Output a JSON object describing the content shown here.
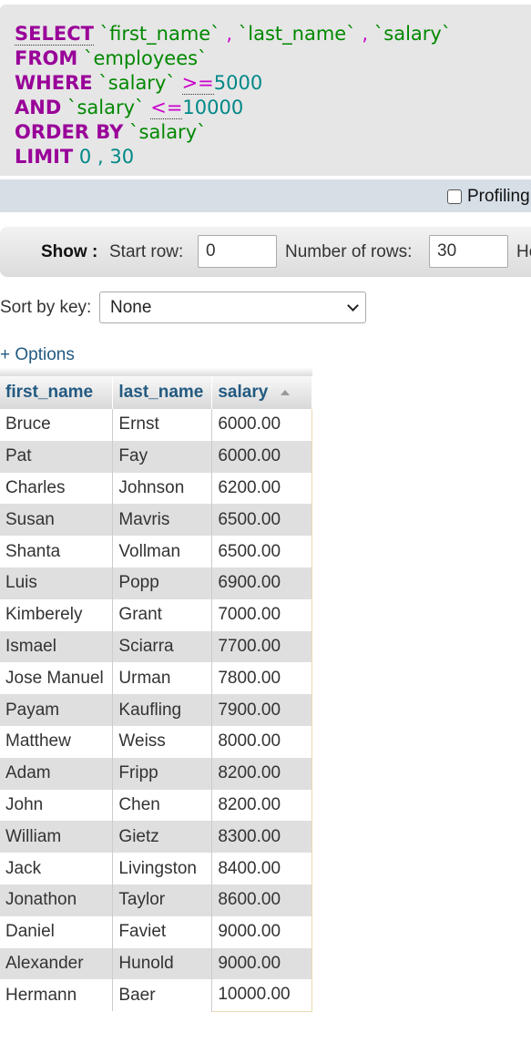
{
  "query": {
    "select": "SELECT",
    "col1": "`first_name`",
    "comma": ",",
    "col2": "`last_name`",
    "col3": "`salary`",
    "from": "FROM",
    "table": "`employees`",
    "where": "WHERE",
    "where_col": "`salary`",
    "op_ge": ">=",
    "val_ge": "5000",
    "and": "AND",
    "and_col": "`salary`",
    "op_le": "<=",
    "val_le": "10000",
    "order_by": "ORDER BY",
    "order_col": "`salary`",
    "limit": "LIMIT",
    "limit_offset": "0",
    "limit_count": "30"
  },
  "profiling": {
    "label": "Profiling"
  },
  "nav": {
    "show_label": "Show :",
    "start_row_label": "Start row:",
    "start_row_value": "0",
    "num_rows_label": "Number of rows:",
    "num_rows_value": "30",
    "headers_label": "Headers every"
  },
  "sort": {
    "label": "Sort by key:",
    "selected": "None"
  },
  "options_link": "+ Options",
  "table": {
    "columns": [
      "first_name",
      "last_name",
      "salary"
    ],
    "rows": [
      [
        "Bruce",
        "Ernst",
        "6000.00"
      ],
      [
        "Pat",
        "Fay",
        "6000.00"
      ],
      [
        "Charles",
        "Johnson",
        "6200.00"
      ],
      [
        "Susan",
        "Mavris",
        "6500.00"
      ],
      [
        "Shanta",
        "Vollman",
        "6500.00"
      ],
      [
        "Luis",
        "Popp",
        "6900.00"
      ],
      [
        "Kimberely",
        "Grant",
        "7000.00"
      ],
      [
        "Ismael",
        "Sciarra",
        "7700.00"
      ],
      [
        "Jose Manuel",
        "Urman",
        "7800.00"
      ],
      [
        "Payam",
        "Kaufling",
        "7900.00"
      ],
      [
        "Matthew",
        "Weiss",
        "8000.00"
      ],
      [
        "Adam",
        "Fripp",
        "8200.00"
      ],
      [
        "John",
        "Chen",
        "8200.00"
      ],
      [
        "William",
        "Gietz",
        "8300.00"
      ],
      [
        "Jack",
        "Livingston",
        "8400.00"
      ],
      [
        "Jonathon",
        "Taylor",
        "8600.00"
      ],
      [
        "Daniel",
        "Faviet",
        "9000.00"
      ],
      [
        "Alexander",
        "Hunold",
        "9000.00"
      ],
      [
        "Hermann",
        "Baer",
        "10000.00"
      ]
    ]
  }
}
